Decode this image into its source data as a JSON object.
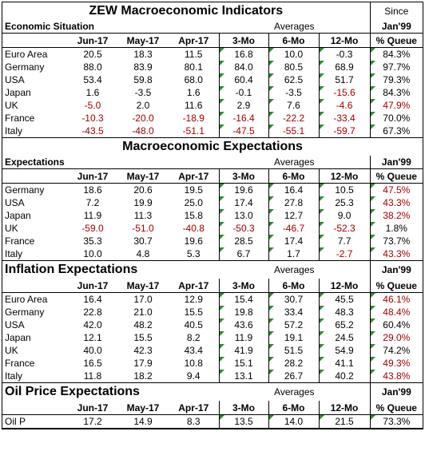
{
  "title": "ZEW Macroeconomic Indicators",
  "since_label": "Since",
  "column_headers": [
    "Jun-17",
    "May-17",
    "Apr-17",
    "3-Mo",
    "6-Mo",
    "12-Mo",
    "% Queue"
  ],
  "averages_label": "Averages",
  "jan_label": "Jan'99",
  "sections": [
    {
      "title": "",
      "subtitle": "Economic Situation",
      "rows": [
        {
          "label": "Euro Area",
          "values": [
            "20.5",
            "18.3",
            "11.5",
            "16.8",
            "10.0",
            "-0.3",
            "84.3%"
          ]
        },
        {
          "label": "Germany",
          "values": [
            "88.0",
            "83.9",
            "80.1",
            "84.0",
            "80.5",
            "68.9",
            "97.7%"
          ]
        },
        {
          "label": "USA",
          "values": [
            "53.4",
            "59.8",
            "68.0",
            "60.4",
            "62.5",
            "51.7",
            "79.3%"
          ]
        },
        {
          "label": "Japan",
          "values": [
            "1.6",
            "-3.5",
            "1.6",
            "-0.1",
            "-3.5",
            "-15.6",
            "84.3%"
          ]
        },
        {
          "label": "UK",
          "values": [
            "-5.0",
            "2.0",
            "11.6",
            "2.9",
            "7.6",
            "-4.6",
            "47.9%"
          ]
        },
        {
          "label": "France",
          "values": [
            "-10.3",
            "-20.0",
            "-18.9",
            "-16.4",
            "-22.2",
            "-33.4",
            "70.0%"
          ]
        },
        {
          "label": "Italy",
          "values": [
            "-43.5",
            "-48.0",
            "-51.1",
            "-47.5",
            "-55.1",
            "-59.7",
            "67.3%"
          ]
        }
      ]
    },
    {
      "title": "Macroeconomic Expectations",
      "subtitle": "Expectations",
      "rows": [
        {
          "label": "Germany",
          "values": [
            "18.6",
            "20.6",
            "19.5",
            "19.6",
            "16.4",
            "10.5",
            "47.5%"
          ]
        },
        {
          "label": "USA",
          "values": [
            "7.2",
            "19.9",
            "25.0",
            "17.4",
            "27.8",
            "25.3",
            "43.3%"
          ]
        },
        {
          "label": "Japan",
          "values": [
            "11.9",
            "11.3",
            "15.8",
            "13.0",
            "12.7",
            "9.0",
            "38.2%"
          ]
        },
        {
          "label": "UK",
          "values": [
            "-59.0",
            "-51.0",
            "-40.8",
            "-50.3",
            "-46.7",
            "-52.3",
            "1.8%"
          ]
        },
        {
          "label": "France",
          "values": [
            "35.3",
            "30.7",
            "19.6",
            "28.5",
            "17.4",
            "7.7",
            "73.7%"
          ]
        },
        {
          "label": "Italy",
          "values": [
            "10.0",
            "4.8",
            "5.3",
            "6.7",
            "1.7",
            "-2.7",
            "43.3%"
          ]
        }
      ]
    },
    {
      "title": "Inflation Expectations",
      "subtitle": "",
      "rows": [
        {
          "label": "Euro Area",
          "values": [
            "16.4",
            "17.0",
            "12.9",
            "15.4",
            "30.7",
            "45.5",
            "46.1%"
          ]
        },
        {
          "label": "Germany",
          "values": [
            "22.8",
            "21.0",
            "15.5",
            "19.8",
            "33.4",
            "48.3",
            "48.4%"
          ]
        },
        {
          "label": "USA",
          "values": [
            "42.0",
            "48.2",
            "40.5",
            "43.6",
            "57.2",
            "65.2",
            "60.4%"
          ]
        },
        {
          "label": "Japan",
          "values": [
            "12.1",
            "15.5",
            "8.2",
            "11.9",
            "19.1",
            "24.5",
            "29.0%"
          ]
        },
        {
          "label": "UK",
          "values": [
            "40.0",
            "42.3",
            "43.4",
            "41.9",
            "51.5",
            "54.9",
            "74.2%"
          ]
        },
        {
          "label": "France",
          "values": [
            "16.5",
            "17.9",
            "10.8",
            "15.1",
            "28.2",
            "41.1",
            "49.3%"
          ]
        },
        {
          "label": "Italy",
          "values": [
            "11.8",
            "18.2",
            "9.4",
            "13.1",
            "26.7",
            "40.2",
            "43.8%"
          ]
        }
      ]
    },
    {
      "title": "Oil Price Expectations",
      "subtitle": "",
      "rows": [
        {
          "label": "Oil P",
          "values": [
            "17.2",
            "14.9",
            "8.3",
            "13.5",
            "14.0",
            "21.5",
            "73.3%"
          ]
        }
      ]
    }
  ],
  "red_cells": {
    "0": {
      "3": [
        5
      ],
      "4": [
        0,
        5,
        6
      ],
      "5": [
        0,
        1,
        2,
        3,
        4,
        5
      ],
      "6": [
        0,
        1,
        2,
        3,
        4,
        5
      ]
    },
    "1": {
      "0": [
        6
      ],
      "1": [
        6
      ],
      "2": [
        6
      ],
      "3": [
        0,
        1,
        2,
        3,
        4,
        5
      ],
      "5": [
        5,
        6
      ]
    },
    "2": {
      "0": [
        6
      ],
      "1": [
        6
      ],
      "3": [
        6
      ],
      "5": [
        6
      ],
      "6": [
        6
      ]
    },
    "3": {}
  }
}
